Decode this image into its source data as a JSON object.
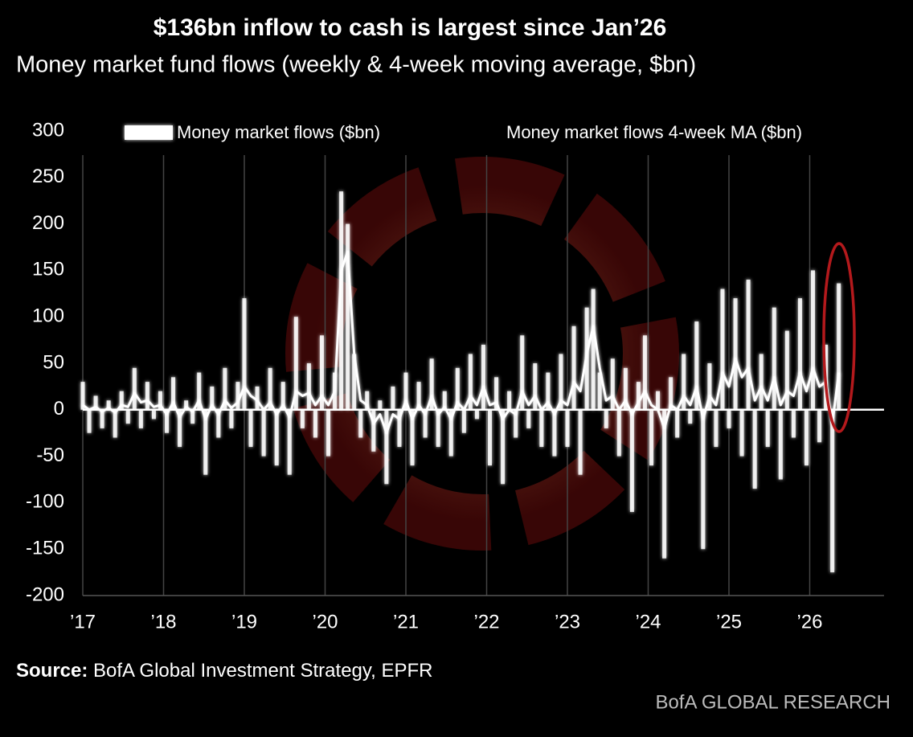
{
  "chart_data": {
    "type": "bar-line",
    "title": "$136bn inflow to cash is largest since Jan’26",
    "subtitle": "Money market fund flows (weekly & 4-week moving average, $bn)",
    "source_label": "Source:",
    "source_text": "BofA Global Investment Strategy, EPFR",
    "brand": "BofA GLOBAL RESEARCH",
    "grid": true,
    "xlim": [
      2017,
      2026.92
    ],
    "xticks": [
      {
        "value": 2017,
        "label": "’17"
      },
      {
        "value": 2018,
        "label": "’18"
      },
      {
        "value": 2019,
        "label": "’19"
      },
      {
        "value": 2020,
        "label": "’20"
      },
      {
        "value": 2021,
        "label": "’21"
      },
      {
        "value": 2022,
        "label": "’22"
      },
      {
        "value": 2023,
        "label": "’23"
      },
      {
        "value": 2024,
        "label": "’24"
      },
      {
        "value": 2025,
        "label": "’25"
      },
      {
        "value": 2026,
        "label": "’26"
      }
    ],
    "ylim": [
      -200,
      300
    ],
    "yticks": [
      -200,
      -150,
      -100,
      -50,
      0,
      50,
      100,
      150,
      200,
      250,
      300
    ],
    "x": [
      2017,
      2017.08,
      2017.16,
      2017.24,
      2017.32,
      2017.4,
      2017.48,
      2017.56,
      2017.64,
      2017.72,
      2017.8,
      2017.88,
      2017.96,
      2018.04,
      2018.12,
      2018.2,
      2018.28,
      2018.36,
      2018.44,
      2018.52,
      2018.6,
      2018.68,
      2018.76,
      2018.84,
      2018.92,
      2019,
      2019.08,
      2019.16,
      2019.24,
      2019.32,
      2019.4,
      2019.48,
      2019.56,
      2019.64,
      2019.72,
      2019.8,
      2019.88,
      2019.96,
      2020.04,
      2020.12,
      2020.2,
      2020.28,
      2020.36,
      2020.44,
      2020.52,
      2020.6,
      2020.68,
      2020.76,
      2020.84,
      2020.92,
      2021,
      2021.08,
      2021.16,
      2021.24,
      2021.32,
      2021.4,
      2021.48,
      2021.56,
      2021.64,
      2021.72,
      2021.8,
      2021.88,
      2021.96,
      2022.04,
      2022.12,
      2022.2,
      2022.28,
      2022.36,
      2022.44,
      2022.52,
      2022.6,
      2022.68,
      2022.76,
      2022.84,
      2022.92,
      2023,
      2023.08,
      2023.16,
      2023.24,
      2023.32,
      2023.4,
      2023.48,
      2023.56,
      2023.64,
      2023.72,
      2023.8,
      2023.88,
      2023.96,
      2024.04,
      2024.12,
      2024.2,
      2024.28,
      2024.36,
      2024.44,
      2024.52,
      2024.6,
      2024.68,
      2024.76,
      2024.84,
      2024.92,
      2025,
      2025.08,
      2025.16,
      2025.24,
      2025.32,
      2025.4,
      2025.48,
      2025.56,
      2025.64,
      2025.72,
      2025.8,
      2025.88,
      2025.96,
      2026.04,
      2026.12,
      2026.2,
      2026.28,
      2026.36
    ],
    "series": [
      {
        "name": "Money market flows ($bn)",
        "type": "bar",
        "color": "#ffffff",
        "values": [
          30,
          -25,
          15,
          -20,
          10,
          -30,
          20,
          -15,
          45,
          -20,
          30,
          -10,
          20,
          -25,
          35,
          -40,
          10,
          -15,
          40,
          -70,
          25,
          -30,
          45,
          -20,
          30,
          120,
          -40,
          25,
          -50,
          45,
          -60,
          30,
          -70,
          100,
          -20,
          50,
          -30,
          80,
          -50,
          40,
          235,
          200,
          60,
          -30,
          20,
          -45,
          10,
          -80,
          25,
          -40,
          40,
          -60,
          30,
          -30,
          55,
          -40,
          20,
          -50,
          45,
          -25,
          60,
          -10,
          70,
          -60,
          35,
          -80,
          20,
          -30,
          80,
          -20,
          50,
          -40,
          40,
          -50,
          60,
          -40,
          90,
          -70,
          110,
          130,
          40,
          -20,
          55,
          -50,
          45,
          -110,
          30,
          80,
          -60,
          20,
          -160,
          35,
          -30,
          60,
          -15,
          95,
          -150,
          50,
          -40,
          130,
          -20,
          120,
          -50,
          140,
          -85,
          60,
          -40,
          110,
          -75,
          85,
          -30,
          120,
          -60,
          150,
          -35,
          70,
          -175,
          136
        ]
      },
      {
        "name": "Money market flows 4-week MA ($bn)",
        "type": "line",
        "color": "#ffffff",
        "values": [
          5,
          0,
          3,
          -2,
          2,
          -3,
          5,
          3,
          18,
          8,
          10,
          3,
          5,
          -5,
          8,
          -8,
          3,
          -2,
          10,
          -10,
          5,
          -5,
          10,
          2,
          8,
          25,
          15,
          10,
          0,
          8,
          -5,
          5,
          -8,
          20,
          15,
          18,
          5,
          15,
          5,
          20,
          150,
          170,
          60,
          10,
          5,
          -15,
          -5,
          -25,
          -5,
          -10,
          10,
          -10,
          5,
          -5,
          15,
          -5,
          3,
          -10,
          8,
          0,
          15,
          5,
          25,
          5,
          8,
          -10,
          0,
          -5,
          20,
          5,
          15,
          0,
          8,
          -5,
          10,
          5,
          30,
          20,
          60,
          90,
          45,
          10,
          15,
          0,
          10,
          -5,
          8,
          20,
          5,
          0,
          -20,
          5,
          0,
          15,
          5,
          25,
          -10,
          15,
          5,
          40,
          25,
          55,
          35,
          45,
          10,
          25,
          10,
          35,
          5,
          20,
          15,
          40,
          20,
          45,
          25,
          30,
          -15,
          40
        ]
      }
    ]
  }
}
